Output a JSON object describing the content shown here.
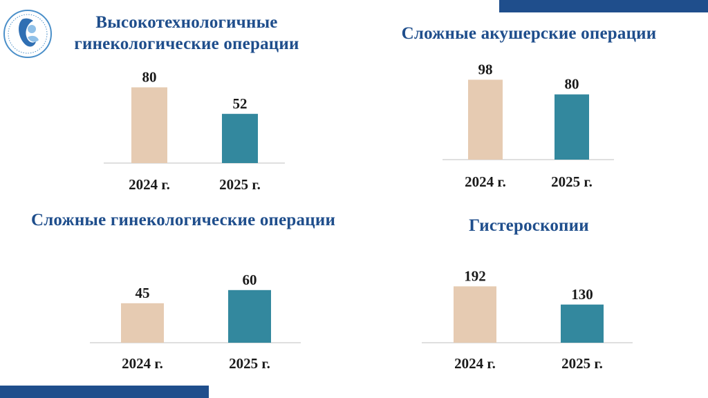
{
  "colors": {
    "accent": "#1f4e8c",
    "bar_2024": "#e6cbb2",
    "bar_2025": "#33889e",
    "axis": "#bfbfbf"
  },
  "logo": {
    "icon": "mother-and-child-logo-icon"
  },
  "chart_data": [
    {
      "type": "bar",
      "title": "Высокотехнологичные гинекологические  операции",
      "categories": [
        "2024 г.",
        "2025 г."
      ],
      "values": [
        80,
        52
      ],
      "data_labels": [
        "80",
        "52"
      ],
      "grid": false,
      "legend": "none"
    },
    {
      "type": "bar",
      "title": "Сложные акушерские операции",
      "categories": [
        "2024 г.",
        "2025 г."
      ],
      "values": [
        98,
        80
      ],
      "data_labels": [
        "98",
        "80"
      ],
      "grid": false,
      "legend": "none"
    },
    {
      "type": "bar",
      "title": "Сложные гинекологические операции",
      "categories": [
        "2024 г.",
        "2025 г."
      ],
      "values": [
        45,
        60
      ],
      "data_labels": [
        "45",
        "60"
      ],
      "grid": false,
      "legend": "none"
    },
    {
      "type": "bar",
      "title": "Гистероскопии",
      "categories": [
        "2024 г.",
        "2025 г."
      ],
      "values": [
        192,
        130
      ],
      "data_labels": [
        "192",
        "130"
      ],
      "grid": false,
      "legend": "none"
    }
  ]
}
